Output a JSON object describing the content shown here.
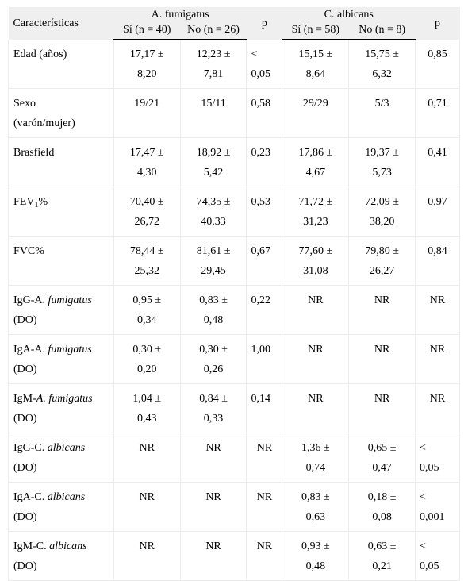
{
  "header": {
    "characteristics": "Características",
    "group_fumigatus": "A. fumigatus",
    "group_albicans": "C. albicans",
    "p_label": "p",
    "fum_yes": "Sí (n = 40)",
    "fum_no": "No (n = 26)",
    "alb_yes": "Sí (n = 58)",
    "alb_no": "No (n = 8)"
  },
  "rows": [
    {
      "l1": "Edad (años)",
      "l1_italic": "",
      "l2": "",
      "fy1": "17,17 ±",
      "fy2": "8,20",
      "fn1": "12,23 ±",
      "fn2": "7,81",
      "p1a": "<",
      "p1b": "0,05",
      "ay1": "15,15 ±",
      "ay2": "8,64",
      "an1": "15,75 ±",
      "an2": "6,32",
      "p2a": "0,85",
      "p2b": ""
    },
    {
      "l1": "Sexo",
      "l1_italic": "",
      "l2": "(varón/mujer)",
      "fy1": "19/21",
      "fy2": "",
      "fn1": "15/11",
      "fn2": "",
      "p1a": "0,58",
      "p1b": "",
      "ay1": "29/29",
      "ay2": "",
      "an1": "5/3",
      "an2": "",
      "p2a": "0,71",
      "p2b": ""
    },
    {
      "l1": "Brasfield",
      "l1_italic": "",
      "l2": "",
      "fy1": "17,47 ±",
      "fy2": "4,30",
      "fn1": "18,92 ±",
      "fn2": "5,42",
      "p1a": "0,23",
      "p1b": "",
      "ay1": "17,86 ±",
      "ay2": "4,67",
      "an1": "19,37 ±",
      "an2": "5,73",
      "p2a": "0,41",
      "p2b": ""
    },
    {
      "l1": "FEV",
      "l1_sub": "1",
      "l1_after": "%",
      "l1_italic": "",
      "l2": "",
      "fy1": "70,40 ±",
      "fy2": "26,72",
      "fn1": "74,35 ±",
      "fn2": "40,33",
      "p1a": "0,53",
      "p1b": "",
      "ay1": "71,72 ±",
      "ay2": "31,23",
      "an1": "72,09 ±",
      "an2": "38,20",
      "p2a": "0,97",
      "p2b": ""
    },
    {
      "l1": "FVC%",
      "l1_italic": "",
      "l2": "",
      "fy1": "78,44 ±",
      "fy2": "25,32",
      "fn1": "81,61 ±",
      "fn2": "29,45",
      "p1a": "0,67",
      "p1b": "",
      "ay1": "77,60 ±",
      "ay2": "31,08",
      "an1": "79,80 ±",
      "an2": "26,27",
      "p2a": "0,84",
      "p2b": ""
    },
    {
      "l1": "IgG-A. ",
      "l1_italic": "fumigatus",
      "l2": "(DO)",
      "fy1": "0,95 ±",
      "fy2": "0,34",
      "fn1": "0,83 ±",
      "fn2": "0,48",
      "p1a": "0,22",
      "p1b": "",
      "ay1": "NR",
      "ay2": "",
      "an1": "NR",
      "an2": "",
      "p2a": "NR",
      "p2b": ""
    },
    {
      "l1": "IgA-A. ",
      "l1_italic": "fumigatus",
      "l2": "(DO)",
      "fy1": "0,30 ±",
      "fy2": "0,20",
      "fn1": "0,30 ±",
      "fn2": "0,26",
      "p1a": "1,00",
      "p1b": "",
      "ay1": "NR",
      "ay2": "",
      "an1": "NR",
      "an2": "",
      "p2a": "NR",
      "p2b": ""
    },
    {
      "l1": "IgM-",
      "l1_italic": "A. fumigatus",
      "l2": "(DO)",
      "fy1": "1,04 ±",
      "fy2": "0,43",
      "fn1": "0,84 ±",
      "fn2": "0,33",
      "p1a": "0,14",
      "p1b": "",
      "ay1": "NR",
      "ay2": "",
      "an1": "NR",
      "an2": "",
      "p2a": "NR",
      "p2b": ""
    },
    {
      "l1": "IgG-C. ",
      "l1_italic": "albicans",
      "l2": "(DO)",
      "fy1": "NR",
      "fy2": "",
      "fn1": "NR",
      "fn2": "",
      "p1a": "NR",
      "p1b": "",
      "ay1": "1,36 ±",
      "ay2": "0,74",
      "an1": "0,65 ±",
      "an2": "0,47",
      "p2a": "<",
      "p2b": "0,05"
    },
    {
      "l1": "IgA-C. ",
      "l1_italic": "albicans",
      "l2": "(DO)",
      "fy1": "NR",
      "fy2": "",
      "fn1": "NR",
      "fn2": "",
      "p1a": "NR",
      "p1b": "",
      "ay1": "0,83 ±",
      "ay2": "0,63",
      "an1": "0,18 ±",
      "an2": "0,08",
      "p2a": "<",
      "p2b": "0,001"
    },
    {
      "l1": "IgM-C. ",
      "l1_italic": "albicans",
      "l2": "(DO)",
      "fy1": "NR",
      "fy2": "",
      "fn1": "NR",
      "fn2": "",
      "p1a": "NR",
      "p1b": "",
      "ay1": "0,93 ±",
      "ay2": "0,48",
      "an1": "0,63 ±",
      "an2": "0,21",
      "p2a": "<",
      "p2b": "0,05"
    }
  ]
}
